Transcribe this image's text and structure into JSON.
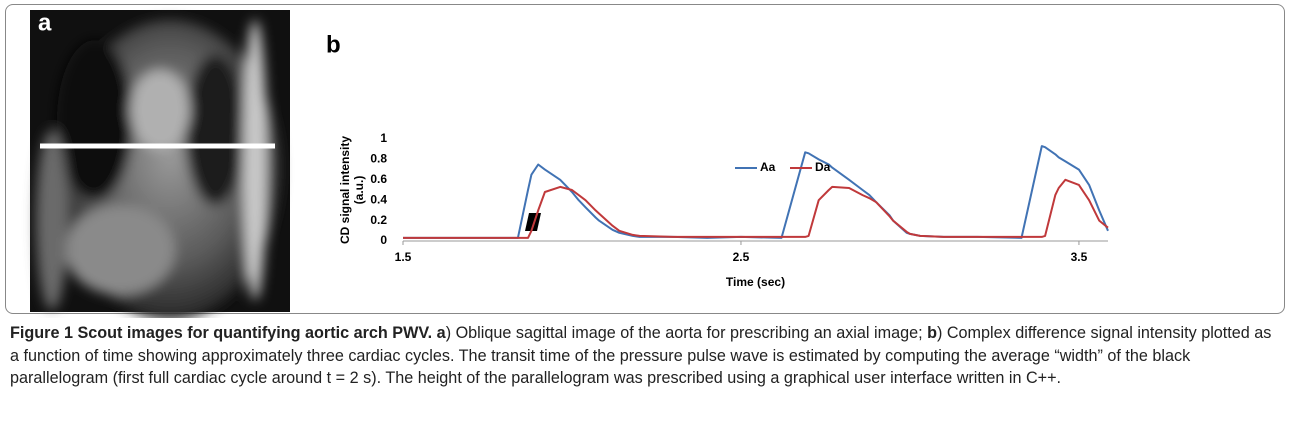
{
  "panel_a": {
    "label": "a"
  },
  "chart_data": {
    "type": "line",
    "panel_label": "b",
    "x_label": "Time (sec)",
    "y_label": [
      "CD signal intensity",
      "(a.u.)"
    ],
    "x": [
      1.5,
      1.6,
      1.7,
      1.8,
      1.84,
      1.87,
      1.88,
      1.9,
      1.92,
      1.965,
      2.0,
      2.02,
      2.04,
      2.07,
      2.08,
      2.12,
      2.14,
      2.18,
      2.2,
      2.3,
      2.4,
      2.5,
      2.62,
      2.69,
      2.7,
      2.73,
      2.76,
      2.77,
      2.82,
      2.86,
      2.88,
      2.9,
      2.94,
      2.95,
      2.99,
      3.0,
      3.03,
      3.1,
      3.2,
      3.33,
      3.39,
      3.4,
      3.43,
      3.44,
      3.46,
      3.5,
      3.53,
      3.56,
      3.586
    ],
    "series": [
      {
        "name": "Aa",
        "color": "#4173b4",
        "values": [
          0.03,
          0.03,
          0.03,
          0.03,
          0.03,
          0.5,
          0.65,
          0.75,
          0.7,
          0.6,
          0.48,
          0.4,
          0.33,
          0.23,
          0.2,
          0.11,
          0.08,
          0.05,
          0.04,
          0.04,
          0.03,
          0.04,
          0.03,
          0.87,
          0.86,
          0.8,
          0.75,
          0.72,
          0.6,
          0.5,
          0.45,
          0.38,
          0.25,
          0.2,
          0.08,
          0.07,
          0.05,
          0.04,
          0.04,
          0.03,
          0.93,
          0.92,
          0.85,
          0.82,
          0.78,
          0.7,
          0.55,
          0.3,
          0.1
        ]
      },
      {
        "name": "Da",
        "color": "#c0393b",
        "values": [
          0.03,
          0.03,
          0.03,
          0.03,
          0.03,
          0.03,
          0.1,
          0.3,
          0.48,
          0.53,
          0.5,
          0.45,
          0.4,
          0.3,
          0.27,
          0.15,
          0.1,
          0.06,
          0.05,
          0.04,
          0.04,
          0.04,
          0.04,
          0.04,
          0.05,
          0.4,
          0.5,
          0.53,
          0.52,
          0.45,
          0.42,
          0.38,
          0.24,
          0.2,
          0.09,
          0.07,
          0.05,
          0.04,
          0.04,
          0.04,
          0.04,
          0.05,
          0.45,
          0.52,
          0.6,
          0.55,
          0.4,
          0.2,
          0.13
        ]
      }
    ],
    "xlim": [
      1.5,
      3.586
    ],
    "xticks": [
      1.5,
      2.5,
      3.5
    ],
    "ylim": [
      0,
      1
    ],
    "yticks": [
      0,
      0.2,
      0.4,
      0.6,
      0.8,
      1
    ],
    "legend": "top"
  },
  "caption": {
    "figure_label": "Figure 1",
    "title": "Scout images for quantifying aortic arch PWV.",
    "a_label": "a",
    "a_text": ") Oblique sagittal image of the aorta for prescribing an axial image; ",
    "b_label": "b",
    "b_text": ") Complex difference signal intensity plotted as a function of time showing approximately three cardiac cycles. The transit time of the pressure pulse wave is estimated by computing the average “width” of the black parallelogram (first full cardiac cycle around t = 2 s). The height of the parallelogram was prescribed using a graphical user interface written in C++."
  }
}
